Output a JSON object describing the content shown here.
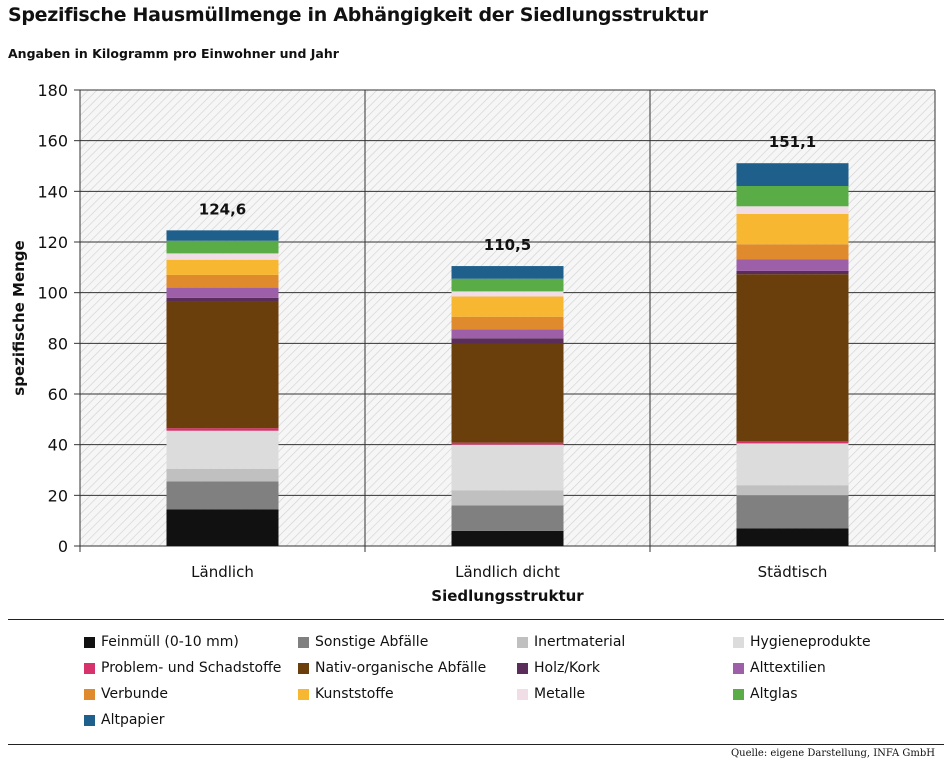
{
  "chart_data": {
    "type": "bar",
    "stacked": true,
    "title": "Spezifische Hausmüllmenge in Abhängigkeit der Siedlungsstruktur",
    "subtitle": "Angaben in Kilogramm pro Einwohner und Jahr",
    "xlabel": "Siedlungsstruktur",
    "ylabel": "spezifische Menge",
    "ylim": [
      0,
      180
    ],
    "yticks": [
      0,
      20,
      40,
      60,
      80,
      100,
      120,
      140,
      160,
      180
    ],
    "grid": true,
    "legend_position": "bottom",
    "categories": [
      "Ländlich",
      "Ländlich dicht",
      "Städtisch"
    ],
    "totals": [
      "124,6",
      "110,5",
      "151,1"
    ],
    "series": [
      {
        "name": "Feinmüll (0-10 mm)",
        "color": "#111111",
        "values": [
          14.5,
          6.0,
          7.0
        ]
      },
      {
        "name": "Sonstige Abfälle",
        "color": "#808080",
        "values": [
          11.0,
          10.0,
          13.0
        ]
      },
      {
        "name": "Inertmaterial",
        "color": "#c0c0c0",
        "values": [
          5.0,
          6.0,
          4.0
        ]
      },
      {
        "name": "Hygieneprodukte",
        "color": "#dcdcdc",
        "values": [
          15.0,
          18.0,
          16.5
        ]
      },
      {
        "name": "Problem- und Schadstoffe",
        "color": "#d6336c",
        "values": [
          1.0,
          0.8,
          0.8
        ]
      },
      {
        "name": "Nativ-organische Abfälle",
        "color": "#6b3f0c",
        "values": [
          50.0,
          39.0,
          66.0
        ]
      },
      {
        "name": "Holz/Kork",
        "color": "#5a2d5a",
        "values": [
          1.5,
          2.2,
          1.3
        ]
      },
      {
        "name": "Alttextilien",
        "color": "#9c5fa8",
        "values": [
          4.0,
          3.5,
          4.5
        ]
      },
      {
        "name": "Verbunde",
        "color": "#e08a2e",
        "values": [
          5.0,
          5.0,
          6.0
        ]
      },
      {
        "name": "Kunststoffe",
        "color": "#f7b731",
        "values": [
          6.0,
          8.0,
          12.0
        ]
      },
      {
        "name": "Metalle",
        "color": "#f1dde6",
        "values": [
          2.5,
          2.0,
          3.0
        ]
      },
      {
        "name": "Altglas",
        "color": "#5aad46",
        "values": [
          5.0,
          5.0,
          8.0
        ]
      },
      {
        "name": "Altpapier",
        "color": "#1f5f8b",
        "values": [
          4.1,
          5.0,
          9.0
        ]
      }
    ]
  },
  "source_note": "Quelle: eigene Darstellung, INFA GmbH"
}
